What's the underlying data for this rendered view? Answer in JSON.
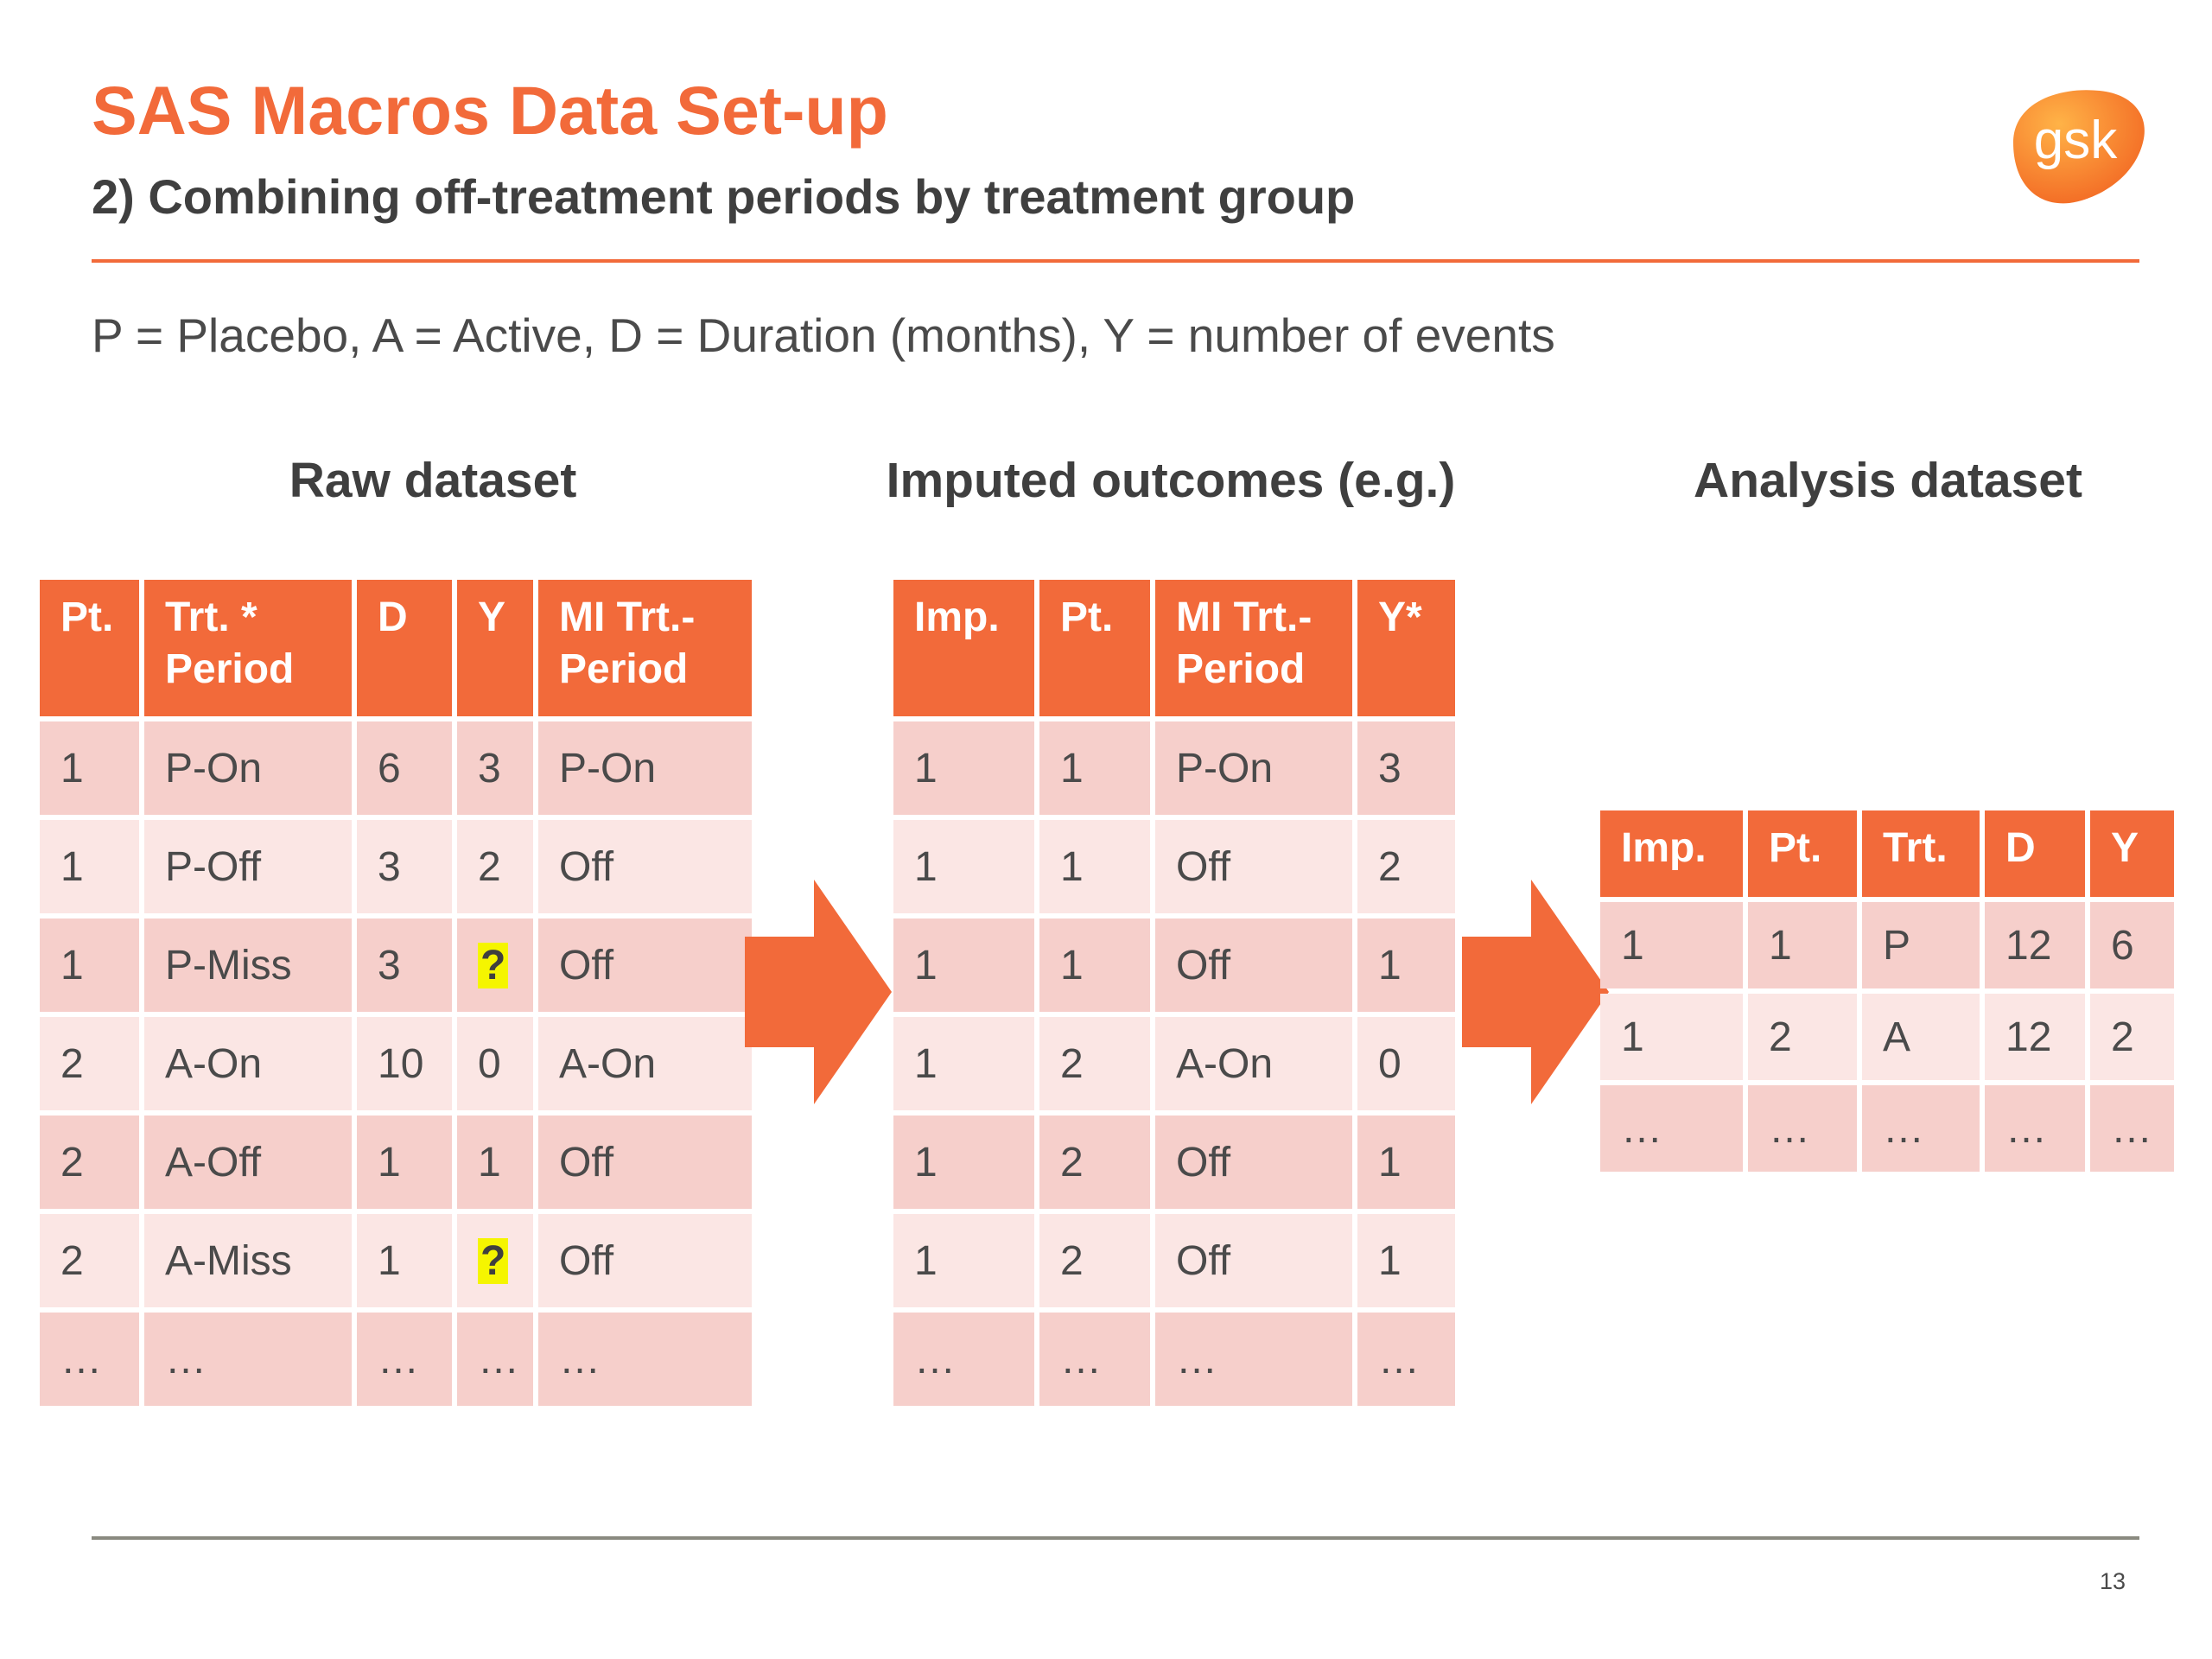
{
  "header": {
    "title": "SAS Macros Data Set-up",
    "subtitle": "2) Combining off-treatment periods by treatment group",
    "logo_text": "gsk"
  },
  "legend": "P = Placebo, A = Active, D = Duration (months), Y = number of events",
  "raw": {
    "heading": "Raw dataset",
    "columns": [
      "Pt.",
      "Trt. *\nPeriod",
      "D",
      "Y",
      "MI Trt.-\nPeriod"
    ],
    "rows": [
      [
        "1",
        "P-On",
        "6",
        "3",
        "P-On"
      ],
      [
        "1",
        "P-Off",
        "3",
        "2",
        "Off"
      ],
      [
        "1",
        "P-Miss",
        "3",
        "?",
        "Off"
      ],
      [
        "2",
        "A-On",
        "10",
        "0",
        "A-On"
      ],
      [
        "2",
        "A-Off",
        "1",
        "1",
        "Off"
      ],
      [
        "2",
        "A-Miss",
        "1",
        "?",
        "Off"
      ],
      [
        "…",
        "…",
        "…",
        "…",
        "…"
      ]
    ]
  },
  "imputed": {
    "heading": "Imputed outcomes (e.g.)",
    "columns": [
      "Imp.",
      "Pt.",
      "MI Trt.-\nPeriod",
      "Y*"
    ],
    "rows": [
      [
        "1",
        "1",
        "P-On",
        "3"
      ],
      [
        "1",
        "1",
        "Off",
        "2"
      ],
      [
        "1",
        "1",
        "Off",
        "1"
      ],
      [
        "1",
        "2",
        "A-On",
        "0"
      ],
      [
        "1",
        "2",
        "Off",
        "1"
      ],
      [
        "1",
        "2",
        "Off",
        "1"
      ],
      [
        "…",
        "…",
        "…",
        "…"
      ]
    ]
  },
  "analysis": {
    "heading": "Analysis dataset",
    "columns": [
      "Imp.",
      "Pt.",
      "Trt.",
      "D",
      "Y"
    ],
    "rows": [
      [
        "1",
        "1",
        "P",
        "12",
        "6"
      ],
      [
        "1",
        "2",
        "A",
        "12",
        "2"
      ],
      [
        "…",
        "…",
        "…",
        "…",
        "…"
      ]
    ]
  },
  "footer": {
    "page_number": "13"
  },
  "colors": {
    "accent": "#f26a3a",
    "row_dark": "#f6cfcb",
    "row_light": "#fbe6e4",
    "highlight": "#f5f500"
  }
}
